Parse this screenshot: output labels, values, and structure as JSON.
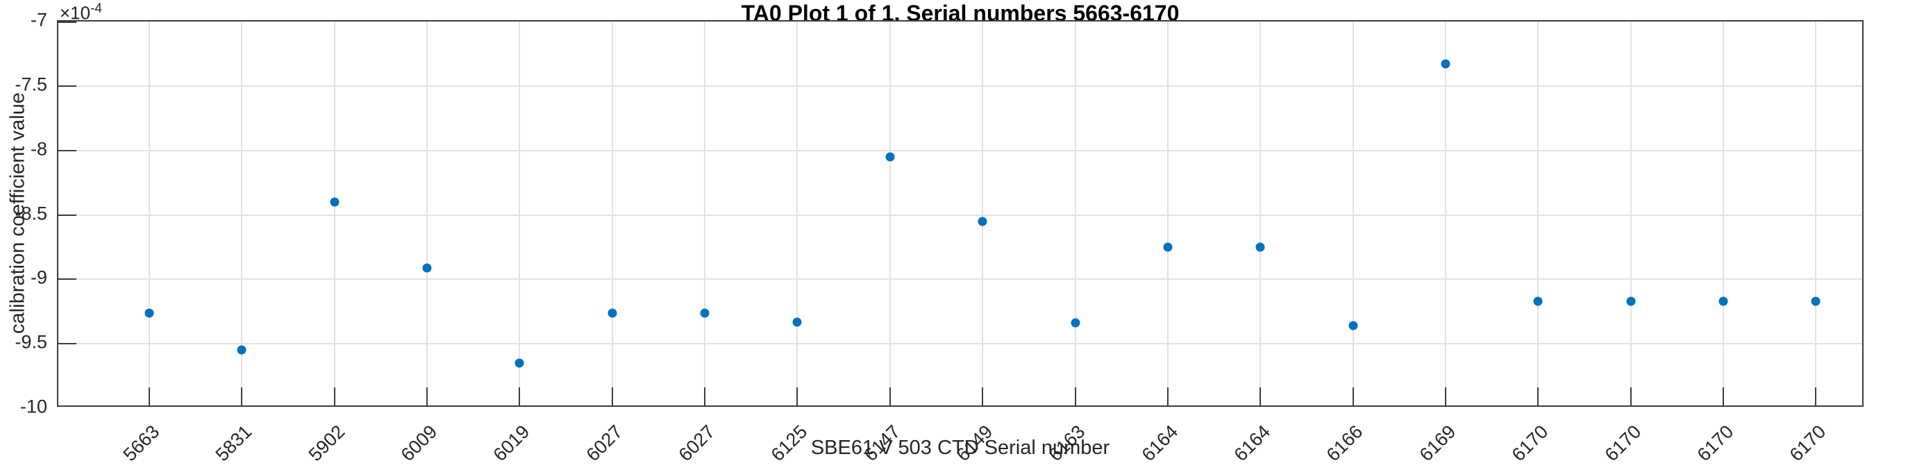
{
  "figure": {
    "title": "TA0 Plot 1 of 1, Serial numbers 5663-6170",
    "y_multiplier_base": "×10",
    "y_multiplier_exponent": "-4"
  },
  "chart_data": {
    "type": "scatter",
    "title": "TA0 Plot 1 of 1, Serial numbers 5663-6170",
    "xlabel": "SBE61 V 503 CTD Serial number",
    "ylabel": "calibration coefficient value",
    "y_unit_multiplier": "1e-4",
    "categories": [
      "5663",
      "5831",
      "5902",
      "6009",
      "6019",
      "6027",
      "6027",
      "6125",
      "6147",
      "6149",
      "6163",
      "6164",
      "6164",
      "6166",
      "6169",
      "6170",
      "6170",
      "6170",
      "6170"
    ],
    "values": [
      -9.26,
      -9.55,
      -8.4,
      -8.91,
      -9.65,
      -9.26,
      -9.26,
      -9.33,
      -8.05,
      -8.55,
      -9.34,
      -8.75,
      -8.75,
      -9.36,
      -7.33,
      -9.17,
      -9.17,
      -9.17,
      -9.17
    ],
    "ylim": [
      -10,
      -7
    ],
    "yticks": [
      -7,
      -7.5,
      -8,
      -8.5,
      -9,
      -9.5,
      -10
    ],
    "ytick_labels": [
      "-7",
      "-7.5",
      "-8",
      "-8.5",
      "-9",
      "-9.5",
      "-10"
    ],
    "grid": true,
    "legend": "none",
    "marker_color": "#0072BD",
    "grid_color": "#e2e2e2",
    "axis_color": "#3d3d3d",
    "text_color": "#262626"
  }
}
